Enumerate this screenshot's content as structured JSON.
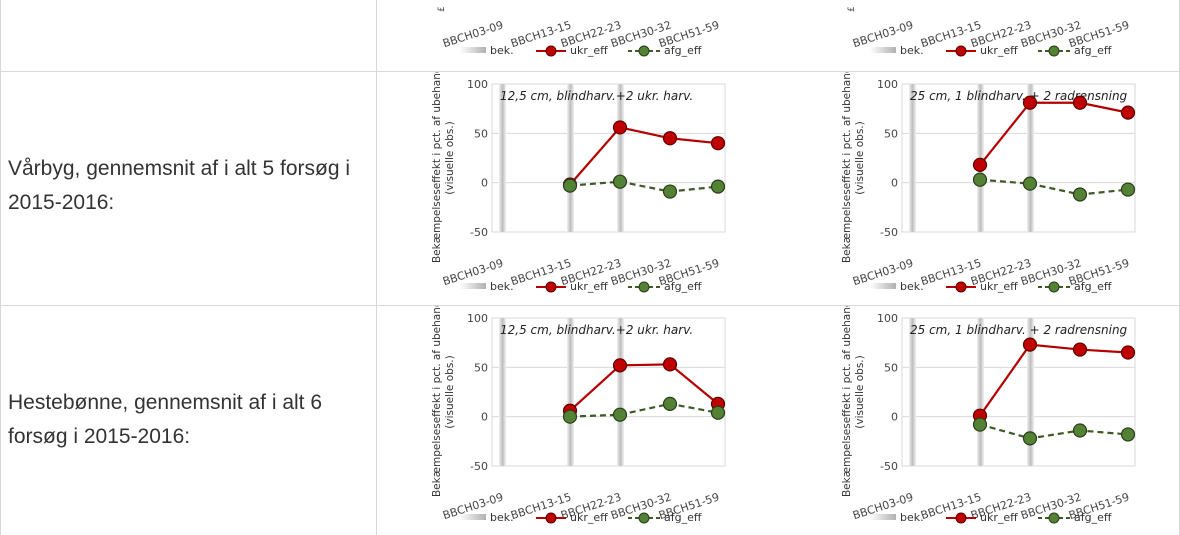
{
  "rows": [
    {
      "label": ""
    },
    {
      "label": "Vårbyg, gennemsnit af i alt 5 forsøg i 2015-2016:"
    },
    {
      "label": "Hestebønne, gennemsnit af i alt 6 forsøg i 2015-2016:"
    }
  ],
  "colors": {
    "ukr": "#c00000",
    "ukr_line": "#b40000",
    "afg": "#548235",
    "afg_line": "#3f5a27",
    "grid": "#d9d9d9",
    "bek": "#bfbfbf"
  },
  "chart_data": [
    {
      "id": "top-left",
      "type": "line",
      "categories": [
        "BBCH03-09",
        "BBCH13-15",
        "BBCH22-23",
        "BBCH30-32",
        "BBCH51-59"
      ],
      "legend": [
        "bek.",
        "ukr_eff",
        "afg_eff"
      ],
      "partial": true
    },
    {
      "id": "top-right",
      "type": "line",
      "categories": [
        "BBCH03-09",
        "BBCH13-15",
        "BBCH22-23",
        "BBCH30-32",
        "BBCH51-59"
      ],
      "legend": [
        "bek.",
        "ukr_eff",
        "afg_eff"
      ],
      "partial": true
    },
    {
      "id": "varbyg-left",
      "type": "line",
      "title": "12,5 cm, blindharv.+2 ukr. harv.",
      "ylabel": "Bekæmpelseseffekt i pct. af ubehandlet (visuelle obs.)",
      "categories": [
        "BBCH03-09",
        "BBCH13-15",
        "BBCH22-23",
        "BBCH30-32",
        "BBCH51-59"
      ],
      "yticks": [
        "100",
        "50",
        "0",
        "-50"
      ],
      "ylim": [
        -50,
        100
      ],
      "legend": [
        "bek.",
        "ukr_eff",
        "afg_eff"
      ],
      "series": [
        {
          "name": "ukr_eff",
          "values": [
            null,
            -2,
            56,
            45,
            40
          ]
        },
        {
          "name": "afg_eff",
          "values": [
            null,
            -3,
            1,
            -9,
            -4
          ]
        }
      ]
    },
    {
      "id": "varbyg-right",
      "type": "line",
      "title": "25 cm, 1 blindharv. + 2 radrensning",
      "ylabel": "Bekæmpelseseffekt i pct. af ubehandlet (visuelle obs.)",
      "categories": [
        "BBCH03-09",
        "BBCH13-15",
        "BBCH22-23",
        "BBCH30-32",
        "BBCH51-59"
      ],
      "yticks": [
        "100",
        "50",
        "0",
        "-50"
      ],
      "ylim": [
        -50,
        100
      ],
      "legend": [
        "bek.",
        "ukr_eff",
        "afg_eff"
      ],
      "series": [
        {
          "name": "ukr_eff",
          "values": [
            null,
            18,
            81,
            81,
            71
          ]
        },
        {
          "name": "afg_eff",
          "values": [
            null,
            3,
            -1,
            -12,
            -7
          ]
        }
      ]
    },
    {
      "id": "heste-left",
      "type": "line",
      "title": "12,5 cm, blindharv.+2 ukr. harv.",
      "ylabel": "Bekæmpelseseffekt i pct. af ubehandlet (visuelle obs.)",
      "categories": [
        "BBCH03-09",
        "BBCH13-15",
        "BBCH22-23",
        "BBCH30-32",
        "BBCH51-59"
      ],
      "yticks": [
        "100",
        "50",
        "0",
        "-50"
      ],
      "ylim": [
        -50,
        100
      ],
      "legend": [
        "bek.",
        "ukr_eff",
        "afg_eff"
      ],
      "series": [
        {
          "name": "ukr_eff",
          "values": [
            null,
            6,
            52,
            53,
            13
          ]
        },
        {
          "name": "afg_eff",
          "values": [
            null,
            0,
            2,
            13,
            4
          ]
        }
      ]
    },
    {
      "id": "heste-right",
      "type": "line",
      "title": "25 cm, 1 blindharv. + 2 radrensning",
      "ylabel": "Bekæmpelseseffekt i pct. af ubehandlet (visuelle obs.)",
      "categories": [
        "BBCH03-09",
        "BBCH13-15",
        "BBCH22-23",
        "BBCH30-32",
        "BBCH51-59"
      ],
      "yticks": [
        "100",
        "50",
        "0",
        "-50"
      ],
      "ylim": [
        -50,
        100
      ],
      "legend": [
        "bek.",
        "ukr_eff",
        "afg_eff"
      ],
      "series": [
        {
          "name": "ukr_eff",
          "values": [
            null,
            1,
            73,
            68,
            65
          ]
        },
        {
          "name": "afg_eff",
          "values": [
            null,
            -8,
            -22,
            -14,
            -18
          ]
        }
      ]
    }
  ]
}
